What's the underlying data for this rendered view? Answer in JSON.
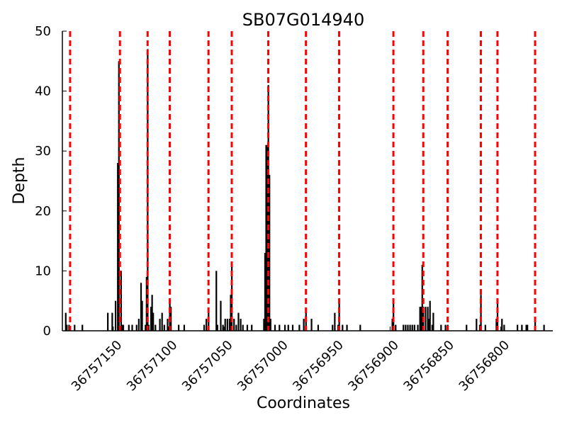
{
  "chart_data": {
    "type": "bar",
    "title": "SB07G014940",
    "xlabel": "Coordinates",
    "ylabel": "Depth",
    "x_reversed": true,
    "xlim": [
      36757196,
      36756769
    ],
    "ylim": [
      0,
      50
    ],
    "yticks": [
      0,
      10,
      20,
      30,
      40,
      50
    ],
    "xticks": [
      36757150,
      36757100,
      36757050,
      36757000,
      36756950,
      36756900,
      36756850,
      36756800
    ],
    "grid": false,
    "bar_color": "#000000",
    "marker_color": "#ff0000",
    "markers_x": [
      36757189,
      36757144,
      36757119,
      36757099,
      36757064,
      36757043,
      36757010,
      36756976,
      36756946,
      36756897,
      36756870,
      36756848,
      36756818,
      36756803,
      36756769
    ],
    "bars": [
      {
        "x": 36757193,
        "y": 3
      },
      {
        "x": 36757192,
        "y": 1
      },
      {
        "x": 36757190,
        "y": 1
      },
      {
        "x": 36757185,
        "y": 1
      },
      {
        "x": 36757178,
        "y": 1
      },
      {
        "x": 36757155,
        "y": 3
      },
      {
        "x": 36757151,
        "y": 3
      },
      {
        "x": 36757148,
        "y": 5
      },
      {
        "x": 36757146,
        "y": 28
      },
      {
        "x": 36757145,
        "y": 45
      },
      {
        "x": 36757143,
        "y": 10
      },
      {
        "x": 36757142,
        "y": 1
      },
      {
        "x": 36757141,
        "y": 1
      },
      {
        "x": 36757136,
        "y": 1
      },
      {
        "x": 36757133,
        "y": 1
      },
      {
        "x": 36757129,
        "y": 1
      },
      {
        "x": 36757127,
        "y": 2
      },
      {
        "x": 36757125,
        "y": 8
      },
      {
        "x": 36757124,
        "y": 5
      },
      {
        "x": 36757121,
        "y": 1
      },
      {
        "x": 36757120,
        "y": 9
      },
      {
        "x": 36757119,
        "y": 47
      },
      {
        "x": 36757118,
        "y": 1
      },
      {
        "x": 36757116,
        "y": 4
      },
      {
        "x": 36757115,
        "y": 6
      },
      {
        "x": 36757114,
        "y": 3
      },
      {
        "x": 36757112,
        "y": 1
      },
      {
        "x": 36757108,
        "y": 2
      },
      {
        "x": 36757106,
        "y": 3
      },
      {
        "x": 36757104,
        "y": 1
      },
      {
        "x": 36757101,
        "y": 2
      },
      {
        "x": 36757099,
        "y": 5
      },
      {
        "x": 36757098,
        "y": 4
      },
      {
        "x": 36757091,
        "y": 1
      },
      {
        "x": 36757086,
        "y": 1
      },
      {
        "x": 36757068,
        "y": 1
      },
      {
        "x": 36757066,
        "y": 2
      },
      {
        "x": 36757064,
        "y": 3
      },
      {
        "x": 36757057,
        "y": 10
      },
      {
        "x": 36757056,
        "y": 1
      },
      {
        "x": 36757053,
        "y": 5
      },
      {
        "x": 36757051,
        "y": 1
      },
      {
        "x": 36757049,
        "y": 2
      },
      {
        "x": 36757047,
        "y": 2
      },
      {
        "x": 36757045,
        "y": 2
      },
      {
        "x": 36757044,
        "y": 6
      },
      {
        "x": 36757043,
        "y": 11
      },
      {
        "x": 36757041,
        "y": 2
      },
      {
        "x": 36757039,
        "y": 1
      },
      {
        "x": 36757037,
        "y": 3
      },
      {
        "x": 36757035,
        "y": 2
      },
      {
        "x": 36757033,
        "y": 1
      },
      {
        "x": 36757029,
        "y": 1
      },
      {
        "x": 36757025,
        "y": 1
      },
      {
        "x": 36757014,
        "y": 2
      },
      {
        "x": 36757013,
        "y": 13
      },
      {
        "x": 36757012,
        "y": 31
      },
      {
        "x": 36757011,
        "y": 31
      },
      {
        "x": 36757010,
        "y": 41
      },
      {
        "x": 36757009,
        "y": 26
      },
      {
        "x": 36757008,
        "y": 2
      },
      {
        "x": 36757004,
        "y": 1
      },
      {
        "x": 36757000,
        "y": 1
      },
      {
        "x": 36756995,
        "y": 1
      },
      {
        "x": 36756992,
        "y": 1
      },
      {
        "x": 36756988,
        "y": 1
      },
      {
        "x": 36756982,
        "y": 1
      },
      {
        "x": 36756978,
        "y": 2
      },
      {
        "x": 36756976,
        "y": 3
      },
      {
        "x": 36756971,
        "y": 2
      },
      {
        "x": 36756965,
        "y": 1
      },
      {
        "x": 36756952,
        "y": 1
      },
      {
        "x": 36756950,
        "y": 3
      },
      {
        "x": 36756947,
        "y": 1
      },
      {
        "x": 36756946,
        "y": 5
      },
      {
        "x": 36756943,
        "y": 1
      },
      {
        "x": 36756939,
        "y": 1
      },
      {
        "x": 36756927,
        "y": 1
      },
      {
        "x": 36756898,
        "y": 2
      },
      {
        "x": 36756897,
        "y": 5
      },
      {
        "x": 36756895,
        "y": 1
      },
      {
        "x": 36756888,
        "y": 1
      },
      {
        "x": 36756886,
        "y": 1
      },
      {
        "x": 36756884,
        "y": 1
      },
      {
        "x": 36756882,
        "y": 1
      },
      {
        "x": 36756880,
        "y": 1
      },
      {
        "x": 36756878,
        "y": 1
      },
      {
        "x": 36756875,
        "y": 1
      },
      {
        "x": 36756873,
        "y": 4
      },
      {
        "x": 36756872,
        "y": 4
      },
      {
        "x": 36756871,
        "y": 11
      },
      {
        "x": 36756870,
        "y": 4
      },
      {
        "x": 36756868,
        "y": 4
      },
      {
        "x": 36756866,
        "y": 4
      },
      {
        "x": 36756865,
        "y": 2
      },
      {
        "x": 36756864,
        "y": 5
      },
      {
        "x": 36756862,
        "y": 1
      },
      {
        "x": 36756861,
        "y": 3
      },
      {
        "x": 36756854,
        "y": 1
      },
      {
        "x": 36756850,
        "y": 1
      },
      {
        "x": 36756848,
        "y": 1
      },
      {
        "x": 36756831,
        "y": 1
      },
      {
        "x": 36756822,
        "y": 2
      },
      {
        "x": 36756819,
        "y": 1
      },
      {
        "x": 36756818,
        "y": 6
      },
      {
        "x": 36756814,
        "y": 1
      },
      {
        "x": 36756804,
        "y": 2
      },
      {
        "x": 36756803,
        "y": 5
      },
      {
        "x": 36756799,
        "y": 2
      },
      {
        "x": 36756797,
        "y": 1
      },
      {
        "x": 36756785,
        "y": 1
      },
      {
        "x": 36756781,
        "y": 1
      },
      {
        "x": 36756777,
        "y": 1
      },
      {
        "x": 36756776,
        "y": 1
      },
      {
        "x": 36756769,
        "y": 2
      },
      {
        "x": 36756761,
        "y": 1
      }
    ]
  }
}
